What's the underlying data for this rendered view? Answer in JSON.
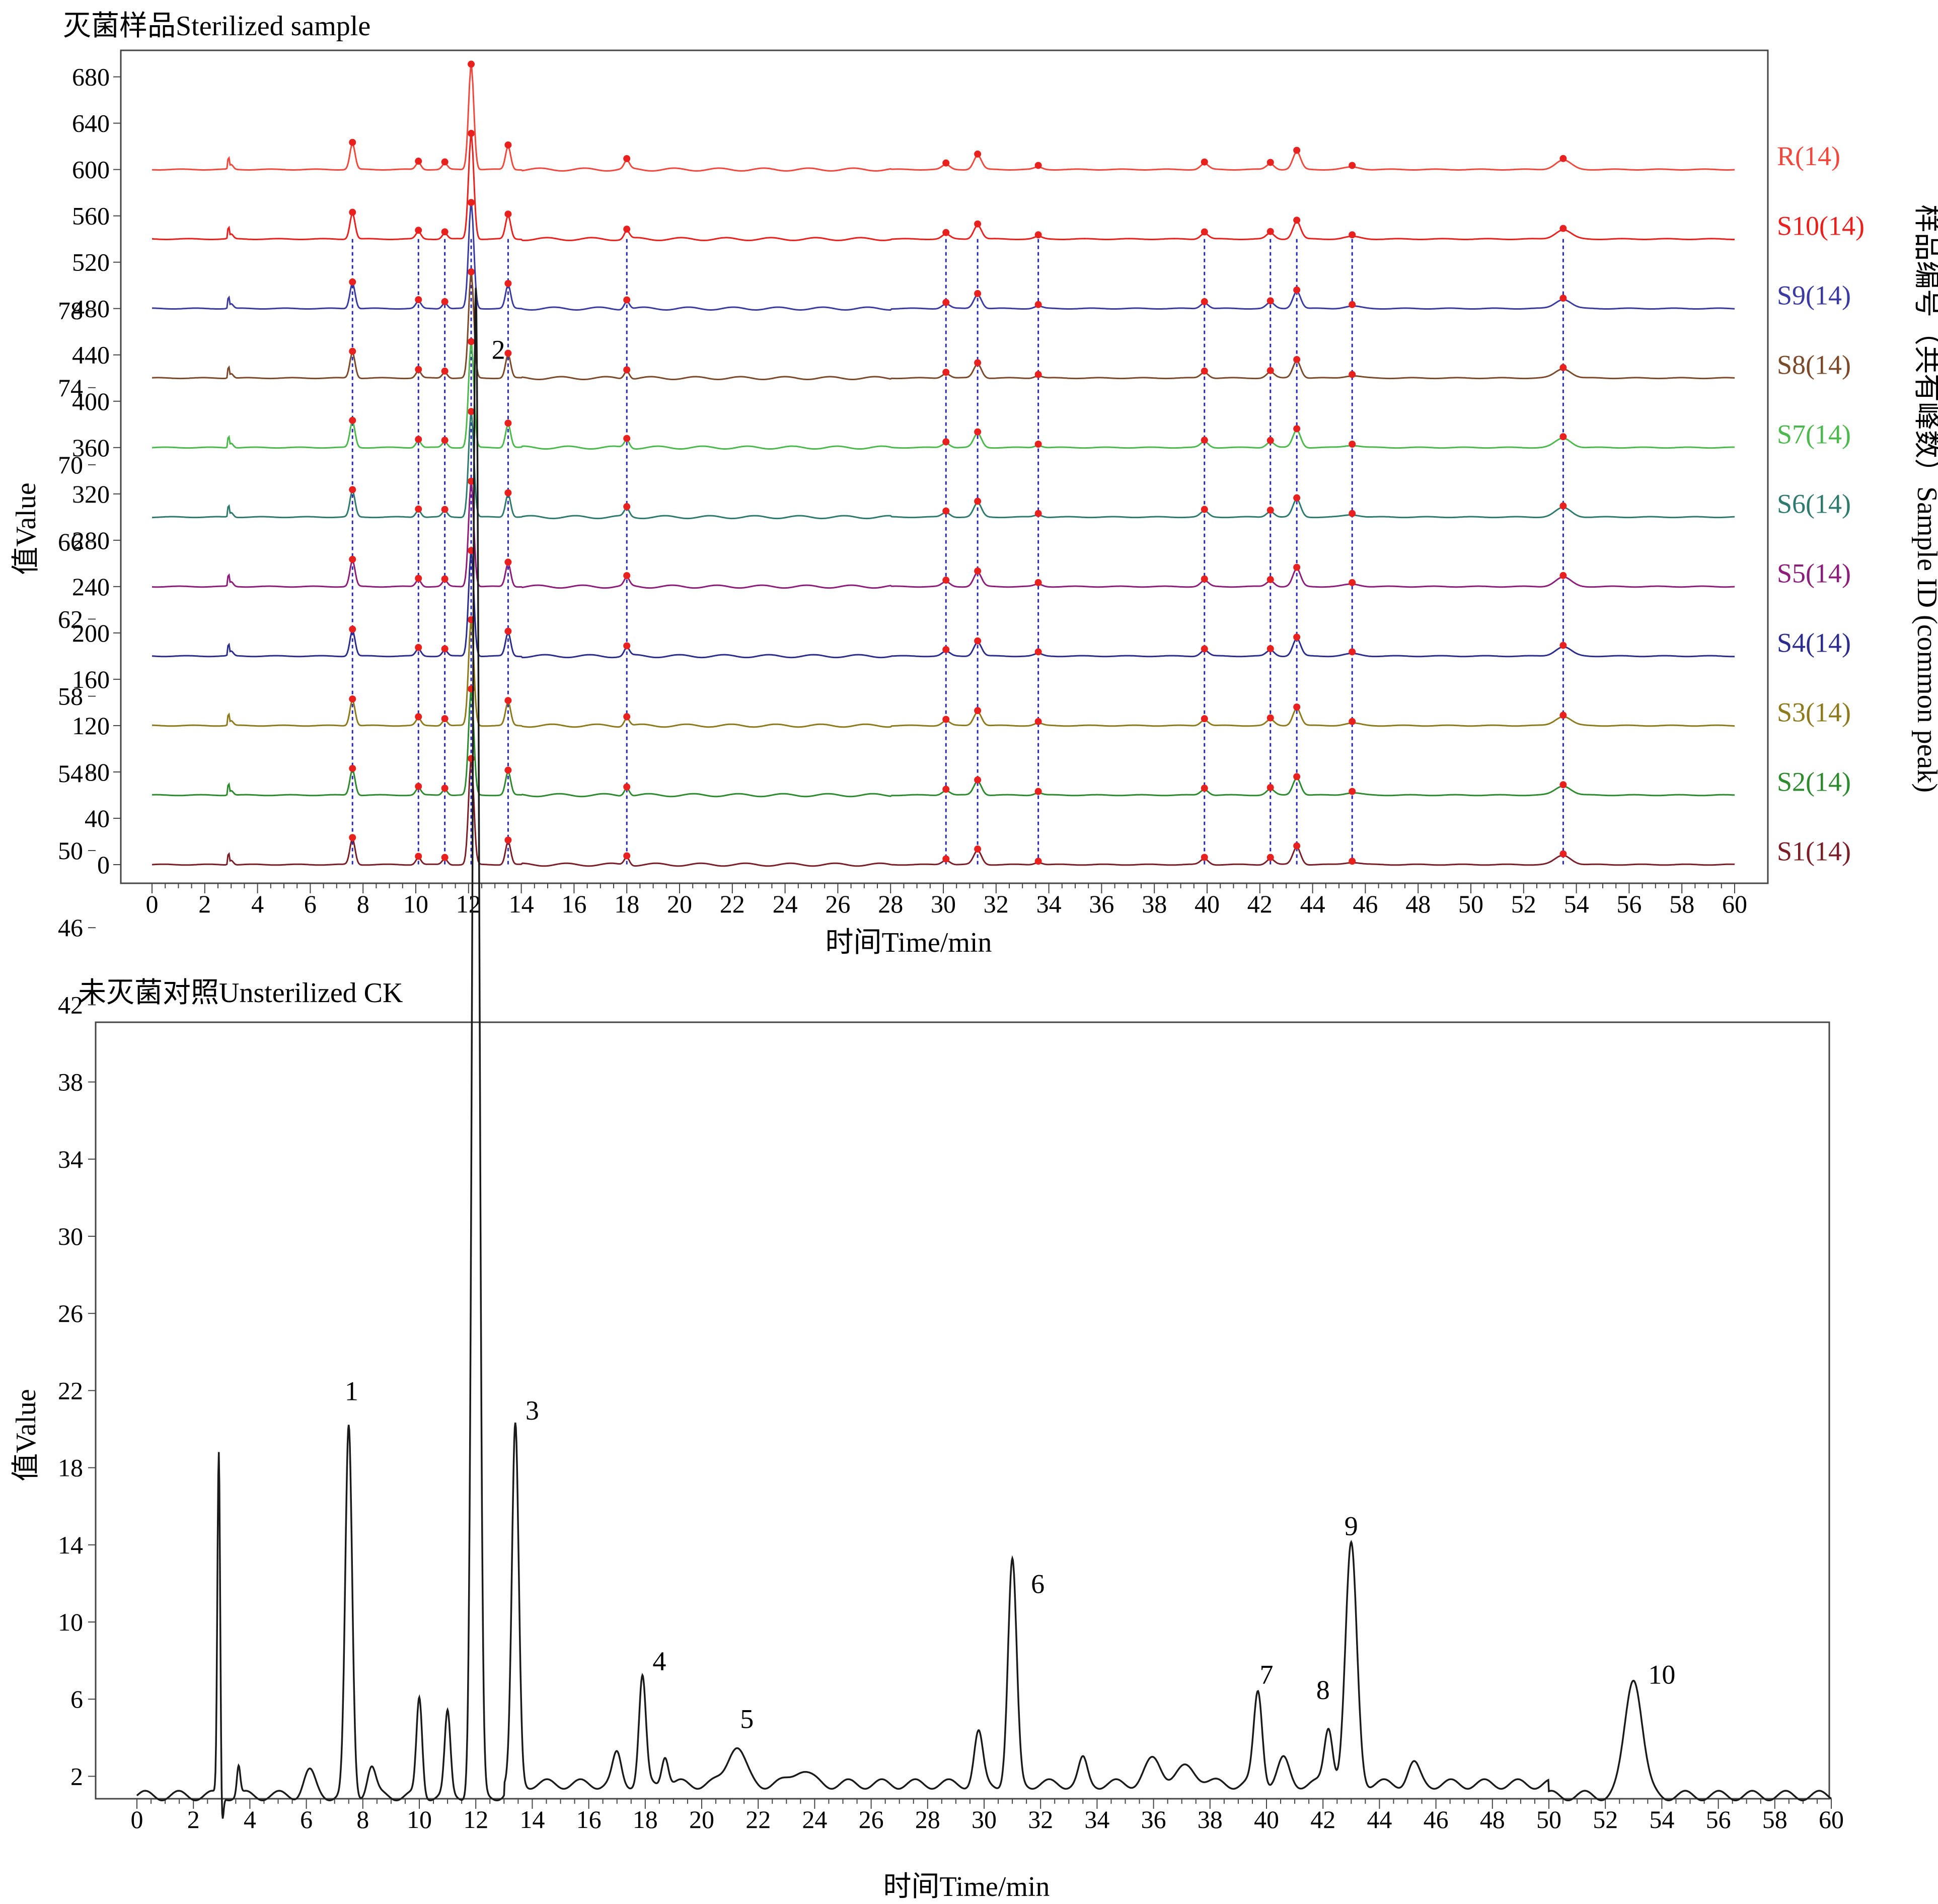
{
  "chart_data": [
    {
      "type": "line",
      "title": "灭菌样品Sterilized sample",
      "xlabel": "时间Time/min",
      "ylabel": "值Value",
      "right_label": "样品编号（共有峰数）Sample ID (common peak)",
      "xlim": [
        0,
        60
      ],
      "ylim": [
        -20,
        700
      ],
      "x_major_ticks": [
        0,
        2,
        4,
        6,
        8,
        10,
        12,
        14,
        16,
        18,
        20,
        22,
        24,
        26,
        28,
        30,
        32,
        34,
        36,
        38,
        40,
        42,
        44,
        46,
        48,
        50,
        52,
        54,
        56,
        58,
        60
      ],
      "y_ticks": [
        0,
        40,
        80,
        120,
        160,
        200,
        240,
        280,
        320,
        360,
        400,
        440,
        480,
        520,
        560,
        600,
        640,
        680
      ],
      "common_peak_times": [
        7.6,
        10.1,
        11.1,
        12.1,
        13.5,
        18.0,
        30.1,
        31.3,
        33.6,
        39.9,
        42.4,
        43.4,
        45.5,
        53.5
      ],
      "series": [
        {
          "name": "S1(14)",
          "offset": 0,
          "color": "#7a1e28"
        },
        {
          "name": "S2(14)",
          "offset": 60,
          "color": "#2f8a2f"
        },
        {
          "name": "S3(14)",
          "offset": 120,
          "color": "#8c7a1c"
        },
        {
          "name": "S4(14)",
          "offset": 180,
          "color": "#2c2c8c"
        },
        {
          "name": "S5(14)",
          "offset": 240,
          "color": "#8c1e7a"
        },
        {
          "name": "S6(14)",
          "offset": 300,
          "color": "#2f7a6e"
        },
        {
          "name": "S7(14)",
          "offset": 360,
          "color": "#4db84d"
        },
        {
          "name": "S8(14)",
          "offset": 420,
          "color": "#7a4a2a"
        },
        {
          "name": "S9(14)",
          "offset": 480,
          "color": "#3a3aa0"
        },
        {
          "name": "S10(14)",
          "offset": 540,
          "color": "#e8201e"
        },
        {
          "name": "R(14)",
          "offset": 600,
          "color": "#f0483c"
        }
      ],
      "peaks": [
        {
          "t": 7.6,
          "h": 22
        },
        {
          "t": 10.1,
          "h": 6
        },
        {
          "t": 11.1,
          "h": 5
        },
        {
          "t": 12.1,
          "h": 90
        },
        {
          "t": 13.5,
          "h": 20
        },
        {
          "t": 18.0,
          "h": 7
        },
        {
          "t": 30.1,
          "h": 4
        },
        {
          "t": 31.3,
          "h": 12
        },
        {
          "t": 33.6,
          "h": 2
        },
        {
          "t": 39.9,
          "h": 5
        },
        {
          "t": 42.4,
          "h": 5
        },
        {
          "t": 43.4,
          "h": 15
        },
        {
          "t": 45.5,
          "h": 2
        },
        {
          "t": 53.5,
          "h": 8
        }
      ]
    },
    {
      "type": "line",
      "title": "未灭菌对照Unsterilized CK",
      "xlabel": "时间Time/min",
      "ylabel": "值Value",
      "xlim": [
        0,
        60
      ],
      "ylim": [
        -3,
        80
      ],
      "x_major_ticks": [
        0,
        2,
        4,
        6,
        8,
        10,
        12,
        14,
        16,
        18,
        20,
        22,
        24,
        26,
        28,
        30,
        32,
        34,
        36,
        38,
        40,
        42,
        44,
        46,
        48,
        50,
        52,
        54,
        56,
        58,
        60
      ],
      "y_ticks": [
        2,
        6,
        10,
        14,
        18,
        22,
        26,
        30,
        34,
        38,
        42,
        46,
        50,
        54,
        58,
        62,
        66,
        70,
        74,
        78
      ],
      "baseline": 1.0,
      "series": [
        {
          "name": "",
          "color": "#1a1a1a"
        }
      ],
      "peaks": [
        {
          "t": 2.9,
          "h": 18.0,
          "w": 0.05
        },
        {
          "t": 3.6,
          "h": 1.5,
          "w": 0.06
        },
        {
          "t": 6.1,
          "h": 1.2,
          "w": 0.2
        },
        {
          "t": 7.5,
          "h": 19.0,
          "w": 0.12
        },
        {
          "t": 8.3,
          "h": 1.5,
          "w": 0.15
        },
        {
          "t": 10.0,
          "h": 5.0,
          "w": 0.1
        },
        {
          "t": 11.0,
          "h": 4.2,
          "w": 0.1
        },
        {
          "t": 12.0,
          "h": 78.0,
          "w": 0.12
        },
        {
          "t": 13.4,
          "h": 18.5,
          "w": 0.12
        },
        {
          "t": 17.0,
          "h": 1.5,
          "w": 0.15
        },
        {
          "t": 17.9,
          "h": 5.5,
          "w": 0.12
        },
        {
          "t": 18.7,
          "h": 1.6,
          "w": 0.12
        },
        {
          "t": 21.2,
          "h": 2.0,
          "w": 0.3
        },
        {
          "t": 23.5,
          "h": 0.8,
          "w": 0.3
        },
        {
          "t": 29.8,
          "h": 2.6,
          "w": 0.15
        },
        {
          "t": 31.0,
          "h": 11.5,
          "w": 0.15
        },
        {
          "t": 33.5,
          "h": 1.2,
          "w": 0.15
        },
        {
          "t": 36.0,
          "h": 1.2,
          "w": 0.3
        },
        {
          "t": 37.2,
          "h": 0.8,
          "w": 0.4
        },
        {
          "t": 39.7,
          "h": 4.8,
          "w": 0.15
        },
        {
          "t": 40.6,
          "h": 1.2,
          "w": 0.2
        },
        {
          "t": 42.2,
          "h": 3.0,
          "w": 0.15
        },
        {
          "t": 43.0,
          "h": 12.3,
          "w": 0.2
        },
        {
          "t": 45.2,
          "h": 1.0,
          "w": 0.2
        },
        {
          "t": 53.0,
          "h": 6.2,
          "w": 0.3
        }
      ],
      "annotations": [
        {
          "label": "1",
          "t": 7.6,
          "v": 21.5
        },
        {
          "label": "2",
          "t": 12.8,
          "v": 75.5
        },
        {
          "label": "3",
          "t": 14.0,
          "v": 20.5
        },
        {
          "label": "4",
          "t": 18.5,
          "v": 7.5
        },
        {
          "label": "5",
          "t": 21.6,
          "v": 4.5
        },
        {
          "label": "6",
          "t": 31.9,
          "v": 11.5
        },
        {
          "label": "7",
          "t": 40.0,
          "v": 6.8
        },
        {
          "label": "8",
          "t": 42.0,
          "v": 6.0
        },
        {
          "label": "9",
          "t": 43.0,
          "v": 14.5
        },
        {
          "label": "10",
          "t": 54.0,
          "v": 6.8
        }
      ]
    }
  ]
}
